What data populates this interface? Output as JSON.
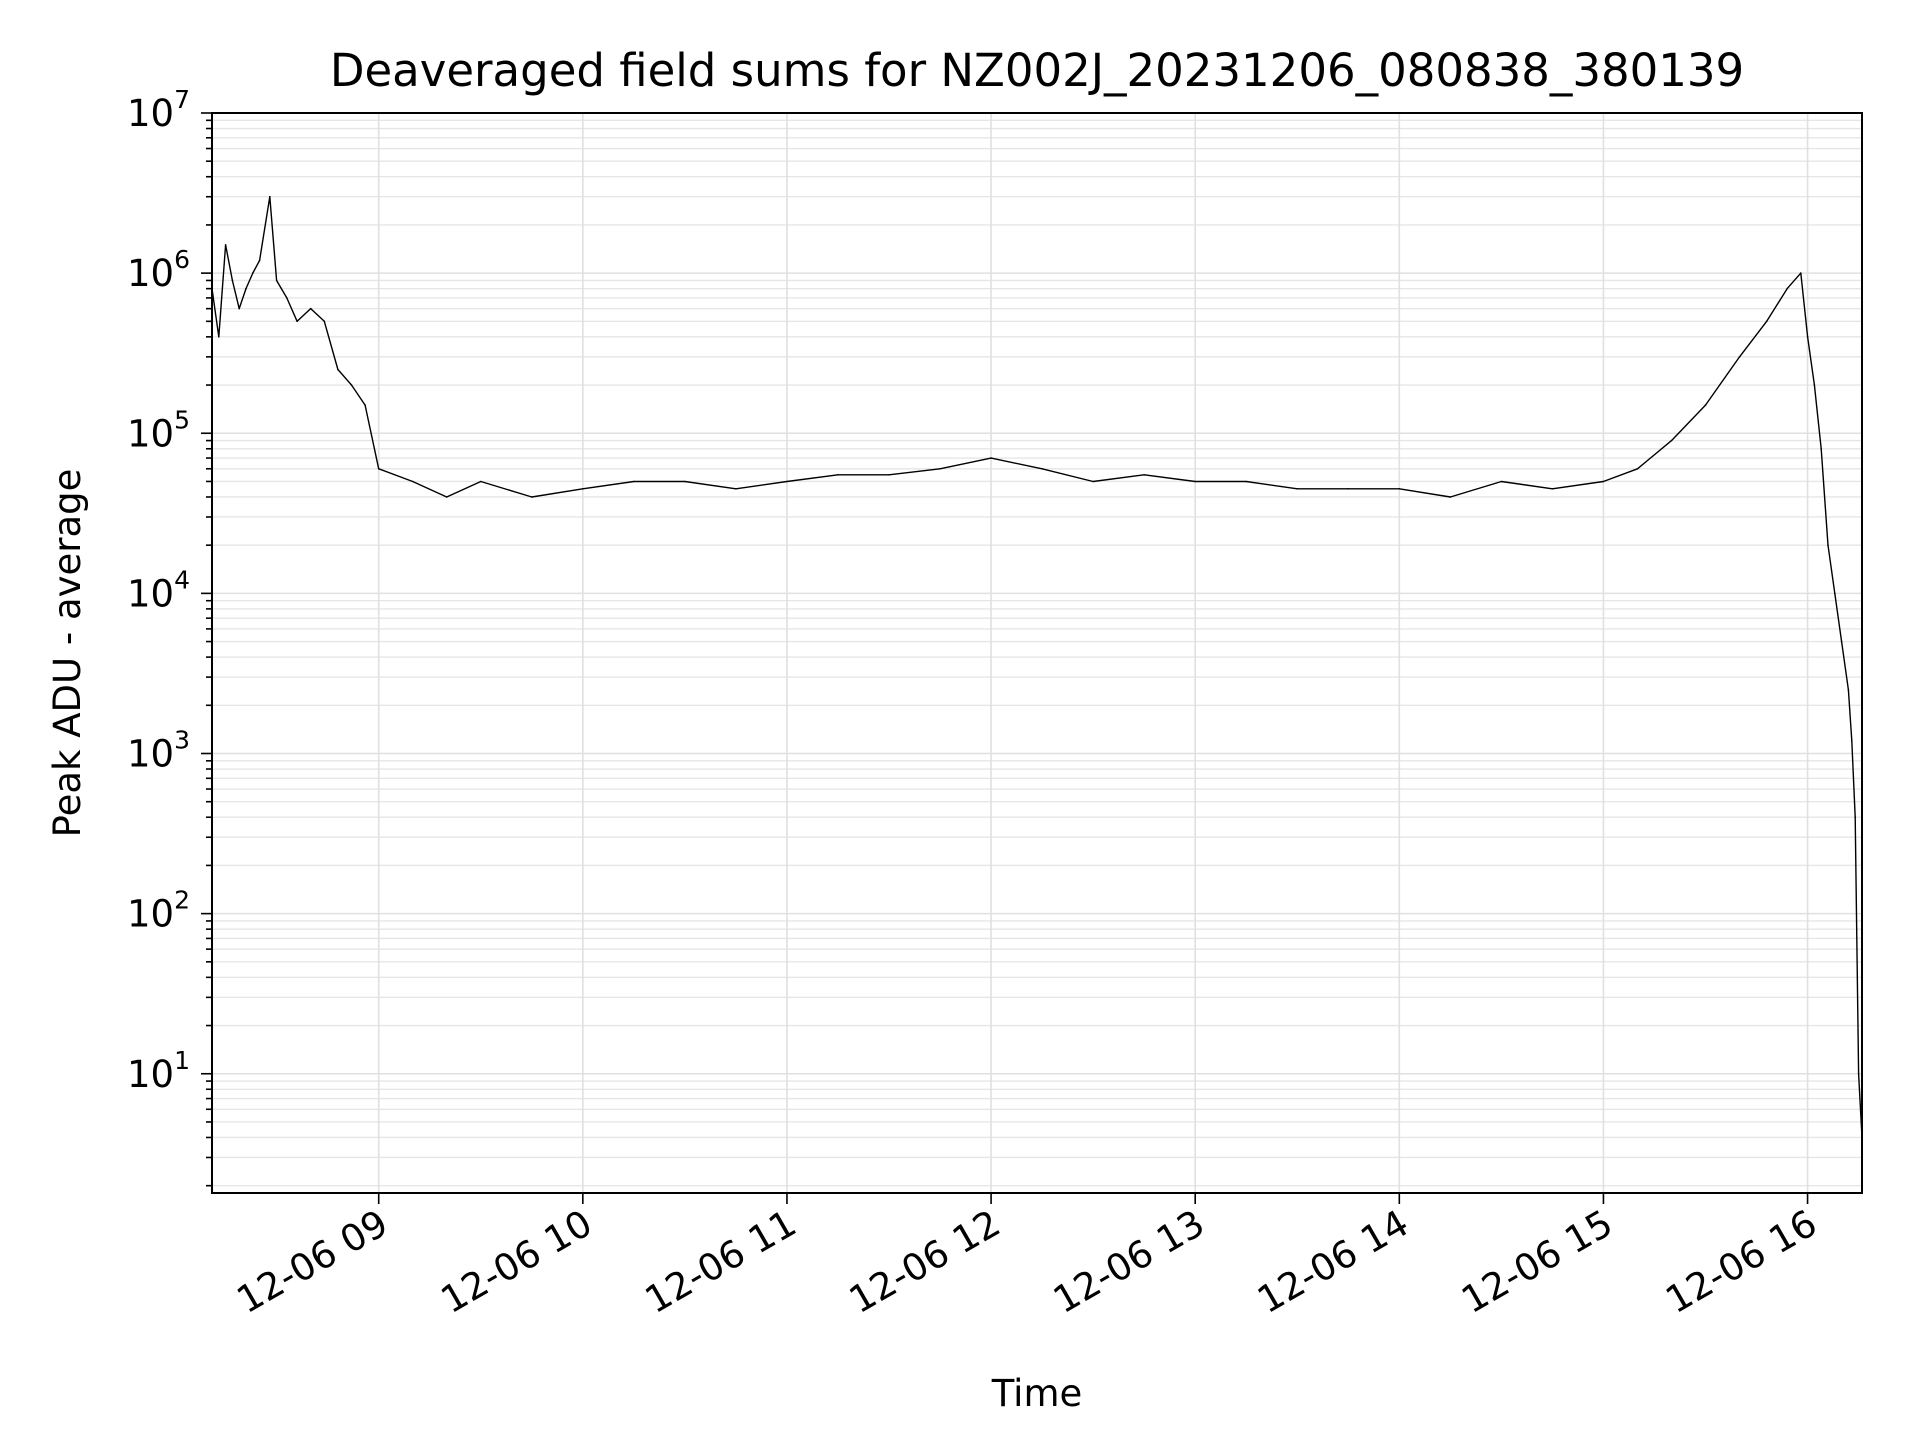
{
  "chart_data": {
    "type": "line",
    "title": "Deaveraged field sums for NZ002J_20231206_080838_380139",
    "xlabel": "Time",
    "ylabel": "Peak ADU - average",
    "y_scale": "log",
    "ylim": [
      1.8,
      10000000
    ],
    "xlim": [
      "2023-12-06 08:11",
      "2023-12-06 16:16"
    ],
    "grid": true,
    "x_ticks": [
      "12-06 09",
      "12-06 10",
      "12-06 11",
      "12-06 12",
      "12-06 13",
      "12-06 14",
      "12-06 15",
      "12-06 16"
    ],
    "x_tick_times": [
      "2023-12-06 09:00",
      "2023-12-06 10:00",
      "2023-12-06 11:00",
      "2023-12-06 12:00",
      "2023-12-06 13:00",
      "2023-12-06 14:00",
      "2023-12-06 15:00",
      "2023-12-06 16:00"
    ],
    "y_ticks": [
      {
        "value": 10,
        "base": "10",
        "exp": "1"
      },
      {
        "value": 100,
        "base": "10",
        "exp": "2"
      },
      {
        "value": 1000,
        "base": "10",
        "exp": "3"
      },
      {
        "value": 10000,
        "base": "10",
        "exp": "4"
      },
      {
        "value": 100000,
        "base": "10",
        "exp": "5"
      },
      {
        "value": 1000000,
        "base": "10",
        "exp": "6"
      },
      {
        "value": 10000000,
        "base": "10",
        "exp": "7"
      }
    ],
    "series": [
      {
        "color": "#000000",
        "x": [
          "2023-12-06 08:11",
          "2023-12-06 08:13",
          "2023-12-06 08:15",
          "2023-12-06 08:17",
          "2023-12-06 08:19",
          "2023-12-06 08:21",
          "2023-12-06 08:23",
          "2023-12-06 08:25",
          "2023-12-06 08:28",
          "2023-12-06 08:30",
          "2023-12-06 08:33",
          "2023-12-06 08:36",
          "2023-12-06 08:40",
          "2023-12-06 08:44",
          "2023-12-06 08:48",
          "2023-12-06 08:52",
          "2023-12-06 08:56",
          "2023-12-06 09:00",
          "2023-12-06 09:10",
          "2023-12-06 09:20",
          "2023-12-06 09:30",
          "2023-12-06 09:45",
          "2023-12-06 10:00",
          "2023-12-06 10:15",
          "2023-12-06 10:30",
          "2023-12-06 10:45",
          "2023-12-06 11:00",
          "2023-12-06 11:15",
          "2023-12-06 11:30",
          "2023-12-06 11:45",
          "2023-12-06 12:00",
          "2023-12-06 12:15",
          "2023-12-06 12:30",
          "2023-12-06 12:45",
          "2023-12-06 13:00",
          "2023-12-06 13:15",
          "2023-12-06 13:30",
          "2023-12-06 13:45",
          "2023-12-06 14:00",
          "2023-12-06 14:15",
          "2023-12-06 14:30",
          "2023-12-06 14:45",
          "2023-12-06 15:00",
          "2023-12-06 15:10",
          "2023-12-06 15:20",
          "2023-12-06 15:30",
          "2023-12-06 15:40",
          "2023-12-06 15:48",
          "2023-12-06 15:54",
          "2023-12-06 15:58",
          "2023-12-06 16:00",
          "2023-12-06 16:02",
          "2023-12-06 16:04",
          "2023-12-06 16:06",
          "2023-12-06 16:08",
          "2023-12-06 16:10",
          "2023-12-06 16:12",
          "2023-12-06 16:13",
          "2023-12-06 16:14",
          "2023-12-06 16:15",
          "2023-12-06 16:16"
        ],
        "values": [
          800000,
          400000,
          1500000,
          900000,
          600000,
          800000,
          1000000,
          1200000,
          3000000,
          900000,
          700000,
          500000,
          600000,
          500000,
          250000,
          200000,
          150000,
          60000,
          50000,
          40000,
          50000,
          40000,
          45000,
          50000,
          50000,
          45000,
          50000,
          55000,
          55000,
          60000,
          70000,
          60000,
          50000,
          55000,
          50000,
          50000,
          45000,
          45000,
          45000,
          40000,
          50000,
          45000,
          50000,
          60000,
          90000,
          150000,
          300000,
          500000,
          800000,
          1000000,
          400000,
          200000,
          80000,
          20000,
          10000,
          5000,
          2500,
          1200,
          400,
          10,
          4
        ]
      }
    ]
  }
}
